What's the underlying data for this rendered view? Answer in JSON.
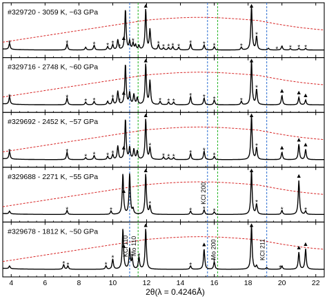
{
  "chart_data": {
    "type": "line",
    "xlabel": "2θ(λ = 0.4246Å)",
    "xlim": [
      3.5,
      22.5
    ],
    "xticks": [
      4,
      6,
      8,
      10,
      12,
      14,
      16,
      18,
      20,
      22
    ],
    "grid": false,
    "reference_lines": [
      {
        "label": "KCl 110",
        "x": 11.0,
        "color": "#3a78d4"
      },
      {
        "label": "Mo 110",
        "x": 11.5,
        "color": "#2fb82f"
      },
      {
        "label": "KCl 200",
        "x": 15.6,
        "color": "#3a78d4"
      },
      {
        "label": "Mo 200",
        "x": 16.2,
        "color": "#2fb82f"
      },
      {
        "label": "KCl 211",
        "x": 19.1,
        "color": "#3a78d4"
      }
    ],
    "marker_legend": {
      "triangle": "▲",
      "star": "*"
    },
    "panels": [
      {
        "label": "#329720 - 3059 K, ~63 GPa",
        "peaks": [
          {
            "x": 3.9,
            "h": 0.18
          },
          {
            "x": 7.3,
            "h": 0.18
          },
          {
            "x": 8.4,
            "h": 0.08
          },
          {
            "x": 8.9,
            "h": 0.14
          },
          {
            "x": 9.7,
            "h": 0.1
          },
          {
            "x": 10.0,
            "h": 0.16
          },
          {
            "x": 10.3,
            "h": 0.3
          },
          {
            "x": 10.75,
            "h": 1.2
          },
          {
            "x": 11.0,
            "h": 0.25
          },
          {
            "x": 11.2,
            "h": 0.2
          },
          {
            "x": 11.35,
            "h": 0.14
          },
          {
            "x": 11.55,
            "h": 0.12
          },
          {
            "x": 11.95,
            "h": 1.2
          },
          {
            "x": 12.2,
            "h": 0.6
          },
          {
            "x": 12.7,
            "h": 0.15
          },
          {
            "x": 13.0,
            "h": 0.06
          },
          {
            "x": 13.3,
            "h": 0.07
          },
          {
            "x": 13.55,
            "h": 0.1
          },
          {
            "x": 13.9,
            "h": 0.08
          },
          {
            "x": 14.6,
            "h": 0.18
          },
          {
            "x": 15.4,
            "h": 0.15
          },
          {
            "x": 16.0,
            "h": 0.1
          },
          {
            "x": 17.6,
            "h": 0.08
          },
          {
            "x": 18.2,
            "h": 1.3
          },
          {
            "x": 18.5,
            "h": 0.4
          },
          {
            "x": 19.2,
            "h": 0.05
          },
          {
            "x": 20.0,
            "h": 0.12
          },
          {
            "x": 20.5,
            "h": 0.04
          },
          {
            "x": 21.0,
            "h": 0.05
          },
          {
            "x": 21.4,
            "h": 0.05
          }
        ],
        "triangles": [
          10.65,
          11.95,
          18.2
        ],
        "stars": [
          3.9,
          7.3,
          8.9,
          9.7,
          10.0,
          10.4,
          11.2,
          12.7,
          13.0,
          13.3,
          13.55,
          13.9,
          14.6,
          15.4,
          16.0,
          17.6,
          18.5,
          19.7,
          20.5,
          21.0,
          21.4
        ]
      },
      {
        "label": "#329716 - 2748 K, ~60 GPa",
        "peaks": [
          {
            "x": 3.9,
            "h": 0.22
          },
          {
            "x": 7.3,
            "h": 0.2
          },
          {
            "x": 8.4,
            "h": 0.08
          },
          {
            "x": 8.9,
            "h": 0.1
          },
          {
            "x": 9.7,
            "h": 0.1
          },
          {
            "x": 10.0,
            "h": 0.18
          },
          {
            "x": 10.3,
            "h": 0.4
          },
          {
            "x": 10.75,
            "h": 1.2
          },
          {
            "x": 11.0,
            "h": 0.35
          },
          {
            "x": 11.25,
            "h": 0.3
          },
          {
            "x": 11.45,
            "h": 0.2
          },
          {
            "x": 11.95,
            "h": 1.2
          },
          {
            "x": 12.2,
            "h": 0.7
          },
          {
            "x": 12.8,
            "h": 0.1
          },
          {
            "x": 13.3,
            "h": 0.08
          },
          {
            "x": 13.6,
            "h": 0.08
          },
          {
            "x": 14.6,
            "h": 0.24
          },
          {
            "x": 15.4,
            "h": 0.2
          },
          {
            "x": 16.0,
            "h": 0.14
          },
          {
            "x": 17.6,
            "h": 0.1
          },
          {
            "x": 18.2,
            "h": 1.3
          },
          {
            "x": 18.5,
            "h": 0.45
          },
          {
            "x": 20.0,
            "h": 0.28
          },
          {
            "x": 21.0,
            "h": 0.22
          },
          {
            "x": 21.4,
            "h": 0.14
          }
        ],
        "triangles": [
          10.65,
          11.95,
          18.2,
          20.0,
          21.0,
          21.4
        ],
        "stars": [
          3.9,
          7.3,
          8.4,
          8.9,
          10.0,
          10.4,
          12.8,
          13.3,
          13.6,
          14.6,
          15.4,
          16.0,
          17.6,
          18.5
        ]
      },
      {
        "label": "#329692 - 2452 K, ~57 GPa",
        "peaks": [
          {
            "x": 3.9,
            "h": 0.22
          },
          {
            "x": 7.3,
            "h": 0.22
          },
          {
            "x": 8.4,
            "h": 0.06
          },
          {
            "x": 8.9,
            "h": 0.12
          },
          {
            "x": 9.7,
            "h": 0.1
          },
          {
            "x": 10.0,
            "h": 0.15
          },
          {
            "x": 10.3,
            "h": 0.4
          },
          {
            "x": 10.75,
            "h": 1.2
          },
          {
            "x": 11.0,
            "h": 0.35
          },
          {
            "x": 11.25,
            "h": 0.3
          },
          {
            "x": 11.45,
            "h": 0.25
          },
          {
            "x": 11.95,
            "h": 1.2
          },
          {
            "x": 12.2,
            "h": 0.35
          },
          {
            "x": 13.0,
            "h": 0.08
          },
          {
            "x": 13.3,
            "h": 0.06
          },
          {
            "x": 13.6,
            "h": 0.06
          },
          {
            "x": 14.6,
            "h": 0.18
          },
          {
            "x": 15.4,
            "h": 0.25
          },
          {
            "x": 16.0,
            "h": 0.1
          },
          {
            "x": 18.2,
            "h": 1.3
          },
          {
            "x": 18.5,
            "h": 0.35
          },
          {
            "x": 20.0,
            "h": 0.22
          },
          {
            "x": 21.0,
            "h": 0.45
          },
          {
            "x": 21.4,
            "h": 0.3
          }
        ],
        "triangles": [
          10.65,
          11.95,
          18.2,
          20.0,
          21.0,
          21.4
        ],
        "stars": [
          3.9,
          7.3,
          8.4,
          8.9,
          9.7,
          10.0,
          12.2,
          13.0,
          13.3,
          13.6,
          14.6,
          15.4,
          16.0,
          18.5
        ]
      },
      {
        "label": "#329688 - 2271 K, ~55 GPa",
        "peaks": [
          {
            "x": 3.9,
            "h": 0.08
          },
          {
            "x": 7.3,
            "h": 0.12
          },
          {
            "x": 9.9,
            "h": 0.1
          },
          {
            "x": 10.6,
            "h": 1.2
          },
          {
            "x": 11.0,
            "h": 1.2
          },
          {
            "x": 11.2,
            "h": 0.15
          },
          {
            "x": 11.95,
            "h": 1.2
          },
          {
            "x": 12.2,
            "h": 0.25
          },
          {
            "x": 14.6,
            "h": 0.1
          },
          {
            "x": 15.4,
            "h": 0.14
          },
          {
            "x": 16.0,
            "h": 0.08
          },
          {
            "x": 18.2,
            "h": 1.3
          },
          {
            "x": 18.5,
            "h": 0.3
          },
          {
            "x": 20.0,
            "h": 0.12
          },
          {
            "x": 21.0,
            "h": 1.0
          },
          {
            "x": 21.4,
            "h": 0.1
          }
        ],
        "triangles": [
          10.65,
          11.95,
          18.2,
          21.0
        ],
        "stars": [
          7.3,
          9.9,
          12.2,
          14.6,
          15.4,
          16.0,
          18.5,
          20.0,
          21.4
        ]
      },
      {
        "label": "#329678 - 1812 K, ~50 GPa",
        "peaks": [
          {
            "x": 3.9,
            "h": 0.08
          },
          {
            "x": 7.1,
            "h": 0.14
          },
          {
            "x": 7.35,
            "h": 0.1
          },
          {
            "x": 9.6,
            "h": 0.1
          },
          {
            "x": 10.0,
            "h": 0.3
          },
          {
            "x": 10.6,
            "h": 1.2
          },
          {
            "x": 11.0,
            "h": 0.6
          },
          {
            "x": 11.15,
            "h": 0.3
          },
          {
            "x": 11.55,
            "h": 0.35
          },
          {
            "x": 11.95,
            "h": 1.2
          },
          {
            "x": 14.6,
            "h": 0.1
          },
          {
            "x": 15.4,
            "h": 0.6
          },
          {
            "x": 16.0,
            "h": 0.22
          },
          {
            "x": 18.2,
            "h": 1.3
          },
          {
            "x": 18.5,
            "h": 0.1
          },
          {
            "x": 19.1,
            "h": 0.05
          },
          {
            "x": 20.0,
            "h": 0.1
          },
          {
            "x": 21.0,
            "h": 0.5
          },
          {
            "x": 21.4,
            "h": 0.6
          }
        ],
        "triangles": [
          10.65,
          11.95,
          15.4,
          18.2,
          21.0,
          21.4
        ],
        "stars": [
          7.1,
          7.35,
          9.6,
          10.0,
          11.15,
          11.55,
          14.6,
          16.0,
          19.9
        ]
      }
    ]
  }
}
